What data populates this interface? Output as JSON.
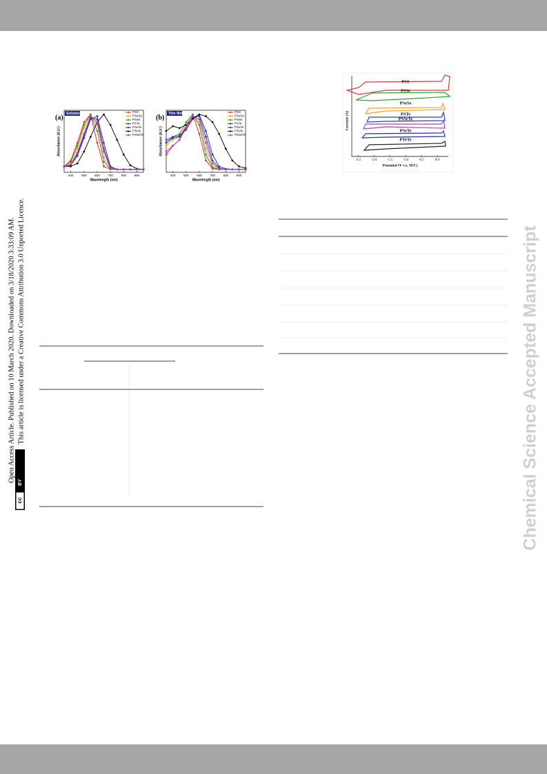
{
  "sidebar_left": {
    "line1": "Open Access Article. Published on 10 March 2020. Downloaded on 3/18/2020 3:33:09 AM.",
    "line2": "This article is licensed under a Creative Commons Attribution 3.0 Unported Licence.",
    "badge_cc": "cc",
    "badge_by": "BY"
  },
  "sidebar_right": {
    "watermark": "Chemical Science Accepted Manuscript"
  },
  "chart_data": [
    {
      "type": "line",
      "panel_label": "(a)",
      "condition": "Solution",
      "xlabel": "Wavelength (nm)",
      "ylabel": "Absorbance (A.U.)",
      "x": [
        350,
        400,
        450,
        500,
        550,
        600,
        650,
        700,
        750,
        800,
        850,
        900,
        950
      ],
      "xlim": [
        350,
        950
      ],
      "xticks": [
        400,
        500,
        600,
        700,
        800,
        900
      ],
      "ylim": [
        0,
        1.05
      ],
      "series": [
        {
          "name": "PSS",
          "color": "#e8312d",
          "values": [
            0.1,
            0.2,
            0.5,
            0.85,
            0.98,
            0.5,
            0.1,
            0.05,
            0.05,
            0.05,
            0.05,
            0.05,
            0.05
          ]
        },
        {
          "name": "PSeSe",
          "color": "#f5a623",
          "values": [
            0.1,
            0.15,
            0.4,
            0.75,
            0.97,
            0.8,
            0.25,
            0.06,
            0.05,
            0.05,
            0.05,
            0.05,
            0.05
          ]
        },
        {
          "name": "PSSe",
          "color": "#2ca02c",
          "values": [
            0.1,
            0.18,
            0.45,
            0.8,
            0.98,
            0.7,
            0.18,
            0.05,
            0.05,
            0.05,
            0.05,
            0.05,
            0.05
          ]
        },
        {
          "name": "PSTe",
          "color": "#1f3fcc",
          "values": [
            0.1,
            0.12,
            0.3,
            0.62,
            0.93,
            0.9,
            0.4,
            0.08,
            0.05,
            0.05,
            0.05,
            0.05,
            0.05
          ]
        },
        {
          "name": "PSeTe",
          "color": "#3a2fa0",
          "values": [
            0.1,
            0.12,
            0.28,
            0.58,
            0.9,
            0.95,
            0.5,
            0.1,
            0.05,
            0.05,
            0.05,
            0.05,
            0.05
          ]
        },
        {
          "name": "PTeTe",
          "color": "#111111",
          "values": [
            0.1,
            0.1,
            0.15,
            0.35,
            0.6,
            0.85,
            0.98,
            0.8,
            0.55,
            0.3,
            0.12,
            0.06,
            0.05
          ]
        },
        {
          "name": "PSSeTe",
          "color": "#c030c0",
          "values": [
            0.1,
            0.13,
            0.33,
            0.65,
            0.95,
            0.85,
            0.35,
            0.07,
            0.05,
            0.05,
            0.05,
            0.05,
            0.05
          ]
        }
      ]
    },
    {
      "type": "line",
      "panel_label": "(b)",
      "condition": "Thin film",
      "xlabel": "Wavelength (nm)",
      "ylabel": "Absorbance (A.U.)",
      "x": [
        350,
        400,
        450,
        500,
        550,
        600,
        650,
        700,
        750,
        800,
        850,
        900,
        950
      ],
      "xlim": [
        350,
        950
      ],
      "xticks": [
        400,
        500,
        600,
        700,
        800,
        900
      ],
      "ylim": [
        0,
        1.05
      ],
      "series": [
        {
          "name": "PSS",
          "color": "#e8312d",
          "values": [
            0.3,
            0.45,
            0.55,
            0.8,
            0.98,
            0.65,
            0.2,
            0.06,
            0.05,
            0.05,
            0.05,
            0.05,
            0.05
          ]
        },
        {
          "name": "PSeSe",
          "color": "#f5a623",
          "values": [
            0.45,
            0.55,
            0.6,
            0.8,
            0.97,
            0.85,
            0.4,
            0.1,
            0.05,
            0.05,
            0.05,
            0.05,
            0.05
          ]
        },
        {
          "name": "PSSe",
          "color": "#2ca02c",
          "values": [
            0.5,
            0.6,
            0.65,
            0.85,
            0.98,
            0.8,
            0.3,
            0.08,
            0.05,
            0.05,
            0.05,
            0.05,
            0.05
          ]
        },
        {
          "name": "PSTe",
          "color": "#1f3fcc",
          "values": [
            0.55,
            0.6,
            0.62,
            0.75,
            0.93,
            0.95,
            0.6,
            0.2,
            0.07,
            0.05,
            0.05,
            0.05,
            0.05
          ]
        },
        {
          "name": "PSeTe",
          "color": "#3a2fa0",
          "values": [
            0.5,
            0.58,
            0.6,
            0.72,
            0.9,
            0.97,
            0.7,
            0.3,
            0.1,
            0.06,
            0.05,
            0.05,
            0.05
          ]
        },
        {
          "name": "PTeTe",
          "color": "#111111",
          "values": [
            0.7,
            0.78,
            0.75,
            0.8,
            0.92,
            0.98,
            0.95,
            0.85,
            0.65,
            0.4,
            0.2,
            0.1,
            0.07
          ]
        },
        {
          "name": "PSSeTe",
          "color": "#c030c0",
          "values": [
            0.35,
            0.45,
            0.55,
            0.75,
            0.95,
            0.9,
            0.5,
            0.15,
            0.06,
            0.05,
            0.05,
            0.05,
            0.05
          ]
        }
      ]
    }
  ],
  "cv_figure": {
    "xlabel": "Potential (V v.s. SEC)",
    "ylabel": "Current (A)",
    "xlim": [
      -2.7,
      0.35
    ],
    "xticks": [
      -2.5,
      {
        "value": -2,
        "label": "-2.0"
      },
      -1.5,
      {
        "value": -1,
        "label": "-1.0"
      },
      -0.5,
      {
        "value": 0,
        "label": "0.0"
      }
    ],
    "curves": [
      "PSS",
      "PSSe",
      "PSeSe",
      "PSTe",
      "PSSeTe",
      "PSeTe",
      "PTeTe"
    ]
  }
}
